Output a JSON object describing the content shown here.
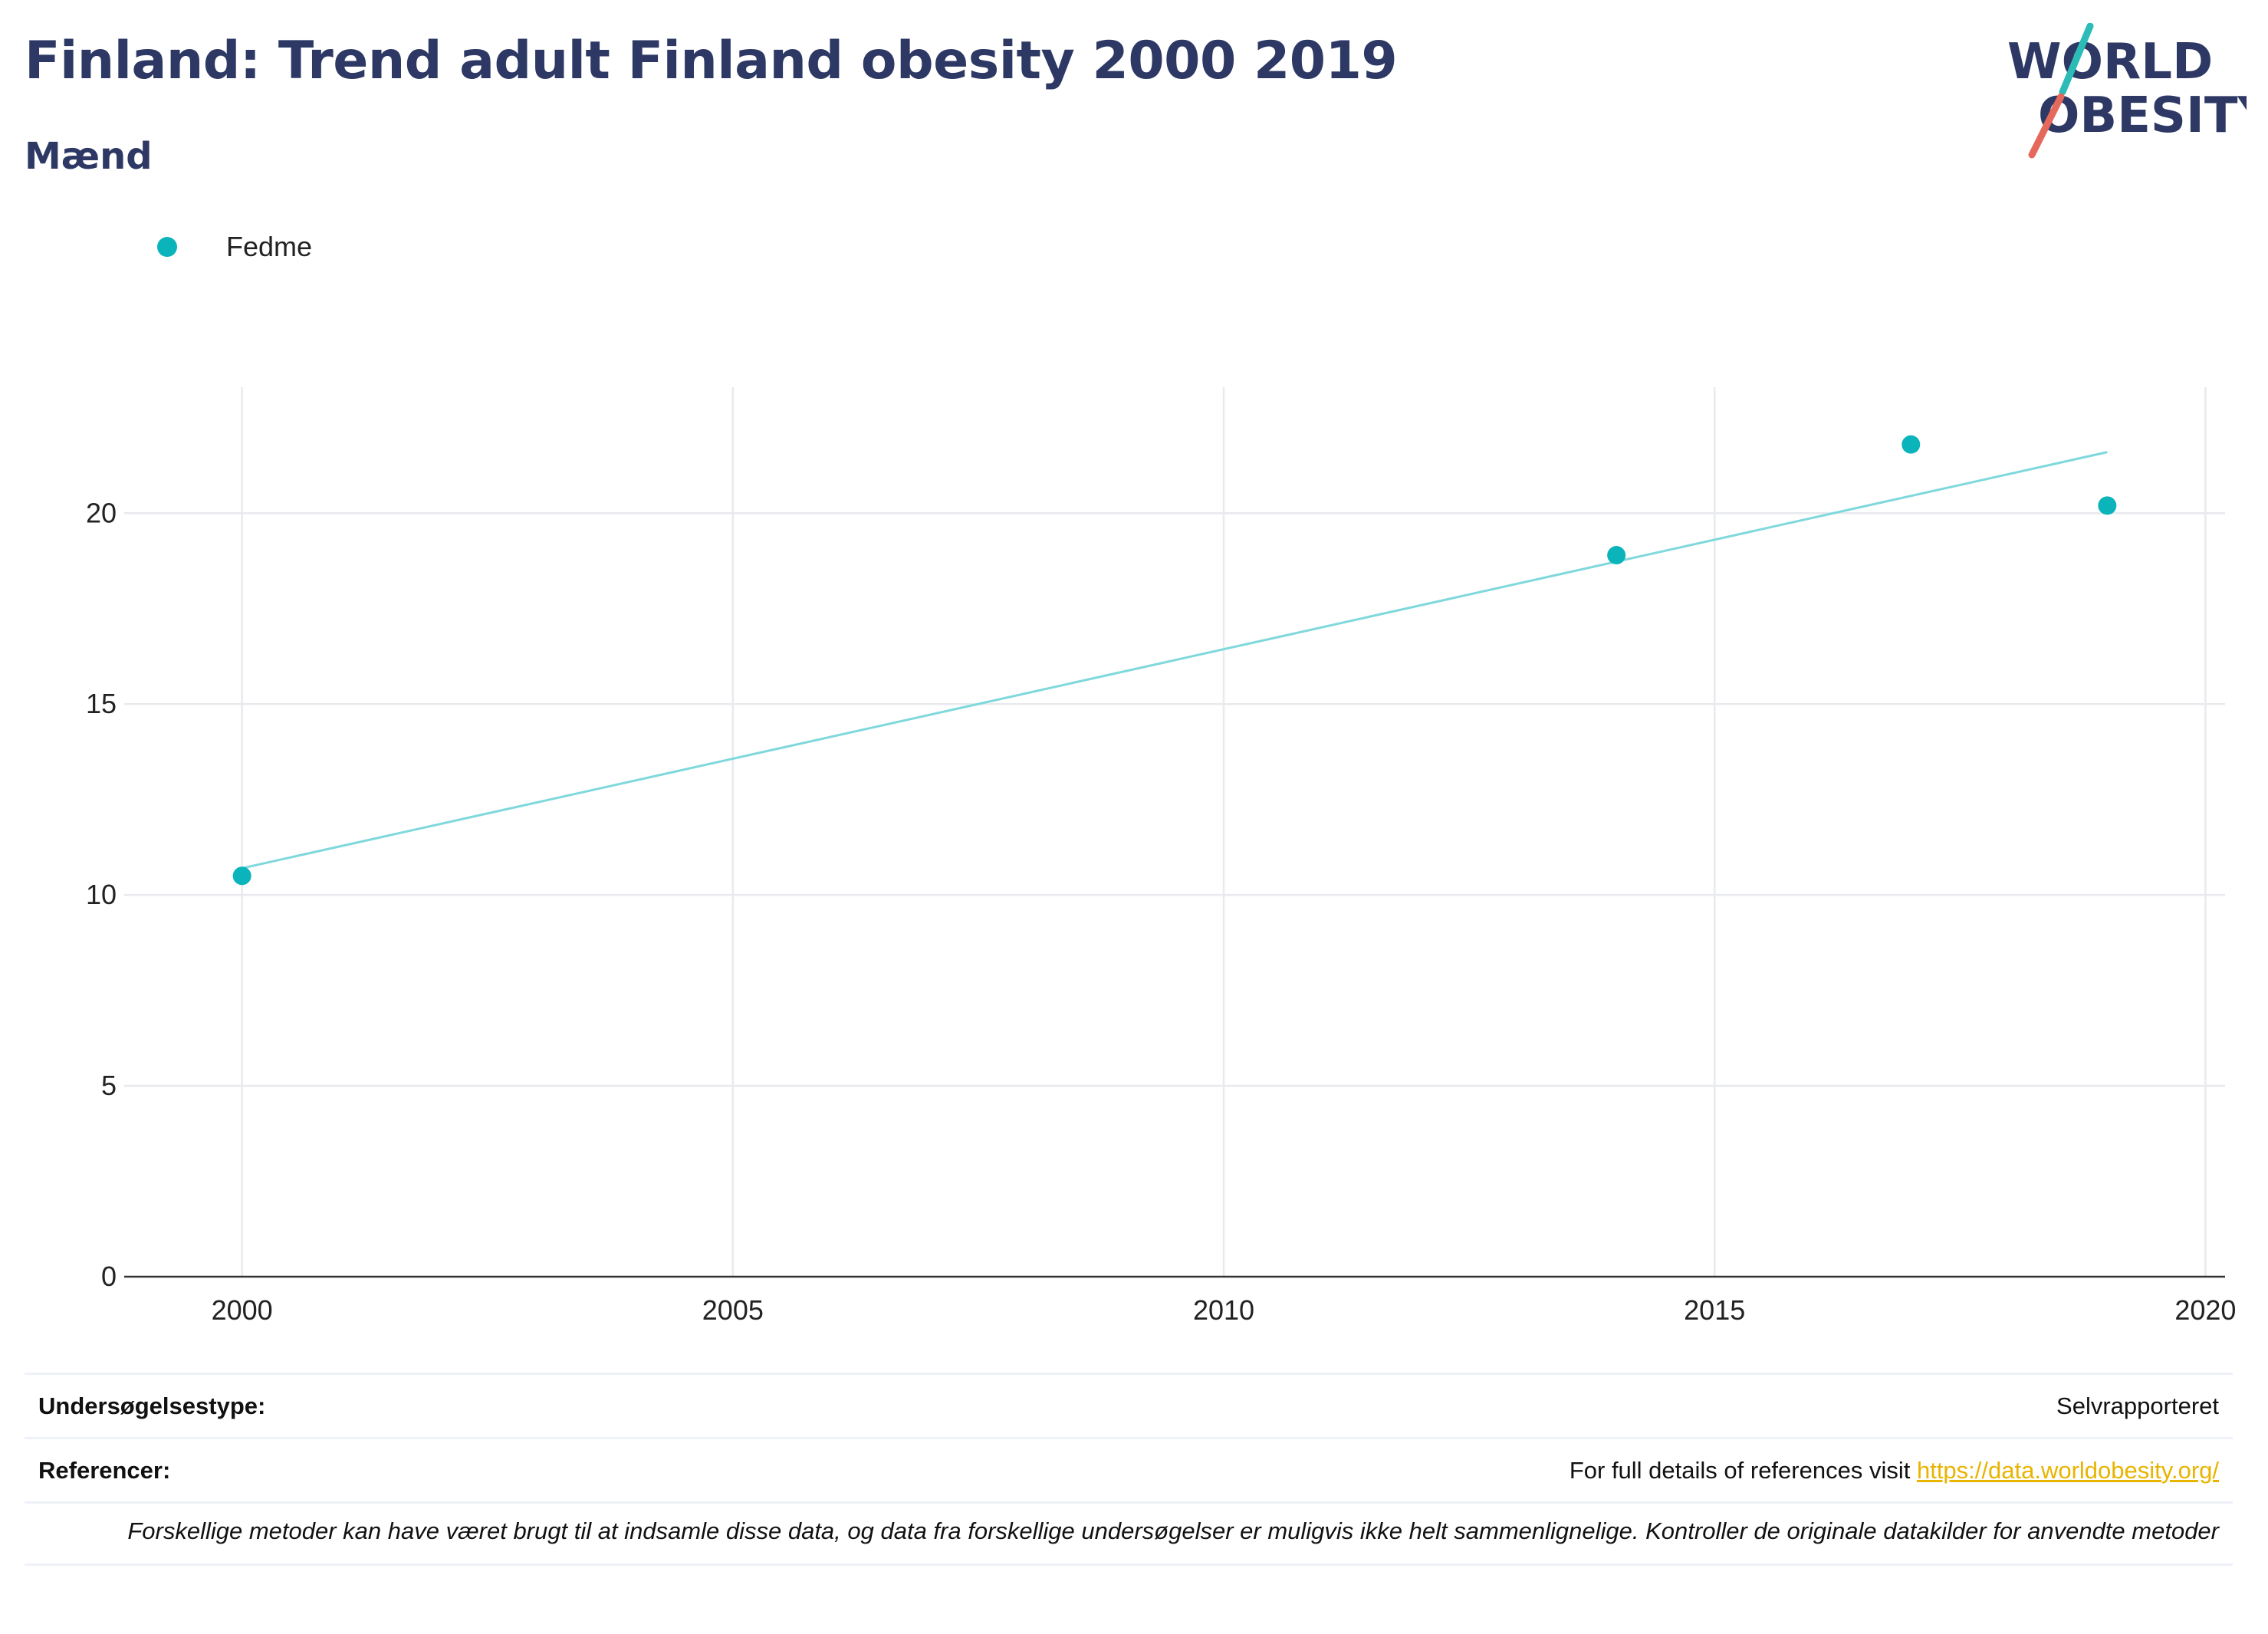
{
  "header": {
    "title": "Finland: Trend adult Finland obesity 2000 2019",
    "subtitle": "Mænd"
  },
  "logo": {
    "line1": "WORLD",
    "line2": "OBESITY",
    "text_color": "#2d3964",
    "slash_top_color": "#2bbcb8",
    "slash_bottom_color": "#e4695a"
  },
  "legend": {
    "label": "Fedme",
    "color": "#0bb3bb"
  },
  "chart_data": {
    "type": "scatter",
    "title": "Finland: Trend adult Finland obesity 2000 2019",
    "subtitle": "Mænd",
    "series": [
      {
        "name": "Fedme",
        "color": "#0bb3bb",
        "points": [
          {
            "x": 2000,
            "y": 10.5
          },
          {
            "x": 2014,
            "y": 18.9
          },
          {
            "x": 2017,
            "y": 21.8
          },
          {
            "x": 2019,
            "y": 20.2
          }
        ]
      }
    ],
    "trendline": {
      "color": "#7fd8dc",
      "points": [
        {
          "x": 2000,
          "y": 10.7
        },
        {
          "x": 2019,
          "y": 21.6
        }
      ]
    },
    "xlim": [
      1998.8,
      2020.2
    ],
    "ylim": [
      0,
      23.3
    ],
    "xticks": [
      2000,
      2005,
      2010,
      2015,
      2020
    ],
    "yticks": [
      0,
      5,
      10,
      15,
      20
    ],
    "grid": true,
    "legend_position": "top-left"
  },
  "info": {
    "survey_type_label": "Undersøgelsestype:",
    "survey_type_value": "Selvrapporteret",
    "references_label": "Referencer:",
    "references_text": "For full details of references visit",
    "references_link": "https://data.worldobesity.org/",
    "note": "Forskellige metoder kan have været brugt til at indsamle disse data, og data fra forskellige undersøgelser er muligvis ikke helt sammenlignelige. Kontroller de originale datakilder for anvendte metoder"
  }
}
